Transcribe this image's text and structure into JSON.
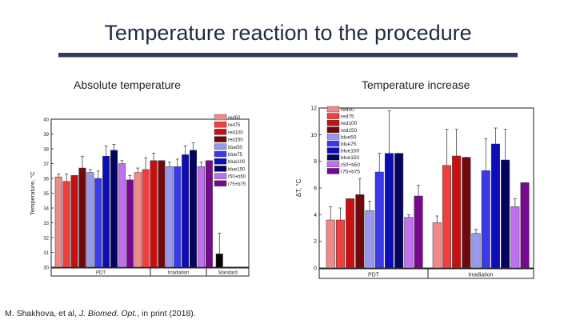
{
  "slide": {
    "title": "Temperature reaction to the procedure",
    "subtitle_left": "Absolute temperature",
    "subtitle_right": "Temperature increase",
    "citation_prefix": "M. Shakhova, et al, ",
    "citation_journal": "J. Biomed. Opt.",
    "citation_suffix": ", in print (2018)."
  },
  "chart_data": [
    {
      "type": "bar",
      "title": "Absolute temperature",
      "ylabel": "Temperature, °C",
      "ylim": [
        30,
        40
      ],
      "yticks": [
        30,
        31,
        32,
        33,
        34,
        35,
        36,
        37,
        38,
        39,
        40
      ],
      "groups": [
        "PDT",
        "Irradiation",
        "Standard"
      ],
      "legend": [
        {
          "name": "red50",
          "color": "#f08a8a"
        },
        {
          "name": "red75",
          "color": "#ef4040"
        },
        {
          "name": "red100",
          "color": "#c81010"
        },
        {
          "name": "red150",
          "color": "#700810"
        },
        {
          "name": "blue50",
          "color": "#9898ee"
        },
        {
          "name": "blue75",
          "color": "#3a3aea"
        },
        {
          "name": "blue100",
          "color": "#0c0cb8"
        },
        {
          "name": "blue150",
          "color": "#040460"
        },
        {
          "name": "r50+b50",
          "color": "#c070f0"
        },
        {
          "name": "r75+b75",
          "color": "#780890"
        }
      ],
      "bars": [
        {
          "group": "PDT",
          "series": "red50",
          "value": 36.1,
          "err": 0.2,
          "color": "#f08a8a"
        },
        {
          "group": "PDT",
          "series": "red75",
          "value": 35.8,
          "err": 0.5,
          "color": "#ef4040"
        },
        {
          "group": "PDT",
          "series": "red100",
          "value": 36.2,
          "err": 0.0,
          "color": "#c81010"
        },
        {
          "group": "PDT",
          "series": "red150",
          "value": 36.7,
          "err": 0.8,
          "color": "#700810"
        },
        {
          "group": "PDT",
          "series": "blue50",
          "value": 36.4,
          "err": 0.2,
          "color": "#9898ee"
        },
        {
          "group": "PDT",
          "series": "blue75",
          "value": 36.0,
          "err": 0.5,
          "color": "#3a3aea"
        },
        {
          "group": "PDT",
          "series": "blue100",
          "value": 37.5,
          "err": 0.7,
          "color": "#0c0cb8"
        },
        {
          "group": "PDT",
          "series": "blue150",
          "value": 37.9,
          "err": 0.4,
          "color": "#040460"
        },
        {
          "group": "PDT",
          "series": "r50+b50",
          "value": 37.0,
          "err": 0.2,
          "color": "#c070f0"
        },
        {
          "group": "PDT",
          "series": "r75+b75",
          "value": 35.9,
          "err": 0.3,
          "color": "#780890"
        },
        {
          "group": "Irradiation",
          "series": "red50",
          "value": 36.4,
          "err": 0.3,
          "color": "#f08a8a"
        },
        {
          "group": "Irradiation",
          "series": "red75",
          "value": 36.6,
          "err": 0.8,
          "color": "#ef4040"
        },
        {
          "group": "Irradiation",
          "series": "red100",
          "value": 37.2,
          "err": 0.5,
          "color": "#c81010"
        },
        {
          "group": "Irradiation",
          "series": "red150",
          "value": 37.2,
          "err": 0.0,
          "color": "#700810"
        },
        {
          "group": "Irradiation",
          "series": "blue50",
          "value": 36.8,
          "err": 0.3,
          "color": "#9898ee"
        },
        {
          "group": "Irradiation",
          "series": "blue75",
          "value": 36.8,
          "err": 0.5,
          "color": "#3a3aea"
        },
        {
          "group": "Irradiation",
          "series": "blue100",
          "value": 37.6,
          "err": 0.6,
          "color": "#0c0cb8"
        },
        {
          "group": "Irradiation",
          "series": "blue150",
          "value": 37.9,
          "err": 0.5,
          "color": "#040460"
        },
        {
          "group": "Irradiation",
          "series": "r50+b50",
          "value": 36.8,
          "err": 0.3,
          "color": "#c070f0"
        },
        {
          "group": "Irradiation",
          "series": "r75+b75",
          "value": 37.2,
          "err": 0.0,
          "color": "#780890"
        },
        {
          "group": "Standard",
          "series": "Standard",
          "value": 30.9,
          "err": 1.4,
          "color": "#050505"
        }
      ]
    },
    {
      "type": "bar",
      "title": "Temperature increase",
      "ylabel": "ΔT, °C",
      "ylim": [
        0,
        12
      ],
      "yticks": [
        0,
        2,
        4,
        6,
        8,
        10,
        12
      ],
      "groups": [
        "PDT",
        "Irradiation"
      ],
      "legend": [
        {
          "name": "red50",
          "color": "#f08a8a"
        },
        {
          "name": "red75",
          "color": "#ef4040"
        },
        {
          "name": "red100",
          "color": "#c81010"
        },
        {
          "name": "red150",
          "color": "#700810"
        },
        {
          "name": "blue50",
          "color": "#9898ee"
        },
        {
          "name": "blue75",
          "color": "#3a3aea"
        },
        {
          "name": "blue100",
          "color": "#0c0cb8"
        },
        {
          "name": "blue150",
          "color": "#040460"
        },
        {
          "name": "r50+b50",
          "color": "#c070f0"
        },
        {
          "name": "r75+b75",
          "color": "#780890"
        }
      ],
      "bars": [
        {
          "group": "PDT",
          "series": "red50",
          "value": 3.6,
          "err": 1.0,
          "color": "#f08a8a"
        },
        {
          "group": "PDT",
          "series": "red75",
          "value": 3.6,
          "err": 0.9,
          "color": "#ef4040"
        },
        {
          "group": "PDT",
          "series": "red100",
          "value": 5.2,
          "err": 0.0,
          "color": "#c81010"
        },
        {
          "group": "PDT",
          "series": "red150",
          "value": 5.5,
          "err": 1.2,
          "color": "#700810"
        },
        {
          "group": "PDT",
          "series": "blue50",
          "value": 4.3,
          "err": 0.7,
          "color": "#9898ee"
        },
        {
          "group": "PDT",
          "series": "blue75",
          "value": 7.2,
          "err": 1.4,
          "color": "#3a3aea"
        },
        {
          "group": "PDT",
          "series": "blue100",
          "value": 8.6,
          "err": 3.2,
          "color": "#0c0cb8"
        },
        {
          "group": "PDT",
          "series": "blue150",
          "value": 8.6,
          "err": 0.0,
          "color": "#040460"
        },
        {
          "group": "PDT",
          "series": "r50+b50",
          "value": 3.8,
          "err": 0.2,
          "color": "#c070f0"
        },
        {
          "group": "PDT",
          "series": "r75+b75",
          "value": 5.4,
          "err": 0.8,
          "color": "#780890"
        },
        {
          "group": "Irradiation",
          "series": "red50",
          "value": 3.4,
          "err": 0.5,
          "color": "#f08a8a"
        },
        {
          "group": "Irradiation",
          "series": "red75",
          "value": 7.7,
          "err": 2.7,
          "color": "#ef4040"
        },
        {
          "group": "Irradiation",
          "series": "red100",
          "value": 8.4,
          "err": 2.0,
          "color": "#c81010"
        },
        {
          "group": "Irradiation",
          "series": "red150",
          "value": 8.3,
          "err": 0.0,
          "color": "#700810"
        },
        {
          "group": "Irradiation",
          "series": "blue50",
          "value": 2.6,
          "err": 0.3,
          "color": "#9898ee"
        },
        {
          "group": "Irradiation",
          "series": "blue75",
          "value": 7.3,
          "err": 2.4,
          "color": "#3a3aea"
        },
        {
          "group": "Irradiation",
          "series": "blue100",
          "value": 9.3,
          "err": 1.2,
          "color": "#0c0cb8"
        },
        {
          "group": "Irradiation",
          "series": "blue150",
          "value": 8.1,
          "err": 2.3,
          "color": "#040460"
        },
        {
          "group": "Irradiation",
          "series": "r50+b50",
          "value": 4.6,
          "err": 0.6,
          "color": "#c070f0"
        },
        {
          "group": "Irradiation",
          "series": "r75+b75",
          "value": 6.4,
          "err": 0.0,
          "color": "#780890"
        }
      ]
    }
  ]
}
